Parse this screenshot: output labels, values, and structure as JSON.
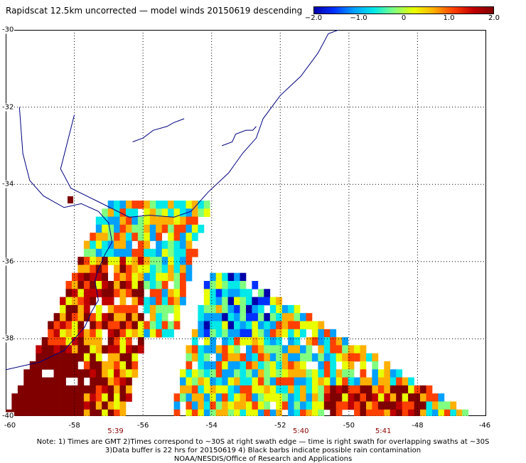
{
  "title": "Rapidscat 12.5km uncorrected — model winds 20150619 descending",
  "colorbar": {
    "ticks": [
      "−2.0",
      "−1.0",
      "0",
      "1.0",
      "2.0"
    ],
    "values": [
      -2.0,
      -1.0,
      0,
      1.0,
      2.0
    ],
    "min": -2.0,
    "max": 2.0,
    "colors": [
      "#0000aa",
      "#0030ff",
      "#00a0ff",
      "#00e8e8",
      "#80ff80",
      "#e8ff00",
      "#ffb000",
      "#ff4000",
      "#c00000",
      "#800000"
    ]
  },
  "map": {
    "lon_range": [
      -60,
      -46
    ],
    "lat_range": [
      -40,
      -30
    ],
    "lon_ticks": [
      "-60",
      "-58",
      "-56",
      "-54",
      "-52",
      "-50",
      "-48",
      "-46"
    ],
    "lat_ticks": [
      "-30",
      "-32",
      "-34",
      "-36",
      "-38",
      "-40"
    ],
    "lon_values": [
      -60,
      -58,
      -56,
      -54,
      -52,
      -50,
      -48,
      -46
    ],
    "lat_values": [
      -30,
      -32,
      -34,
      -36,
      -38,
      -40
    ],
    "gridlines": "dotted",
    "coastline_color": "#000080"
  },
  "swath_times": [
    {
      "label": "5:39",
      "lon": -56.8
    },
    {
      "label": "5:40",
      "lon": -51.4
    },
    {
      "label": "5:41",
      "lon": -49.0
    }
  ],
  "notes": [
    "Note: 1) Times are GMT 2)Times correspond to ~30S at right swath edge — time is right swath for overlapping swaths at ~30S",
    "3)Data buffer is 22 hrs for 20150619 4) Black barbs indicate possible rain contamination",
    "NOAA/NESDIS/Office of Research and Applications"
  ]
}
